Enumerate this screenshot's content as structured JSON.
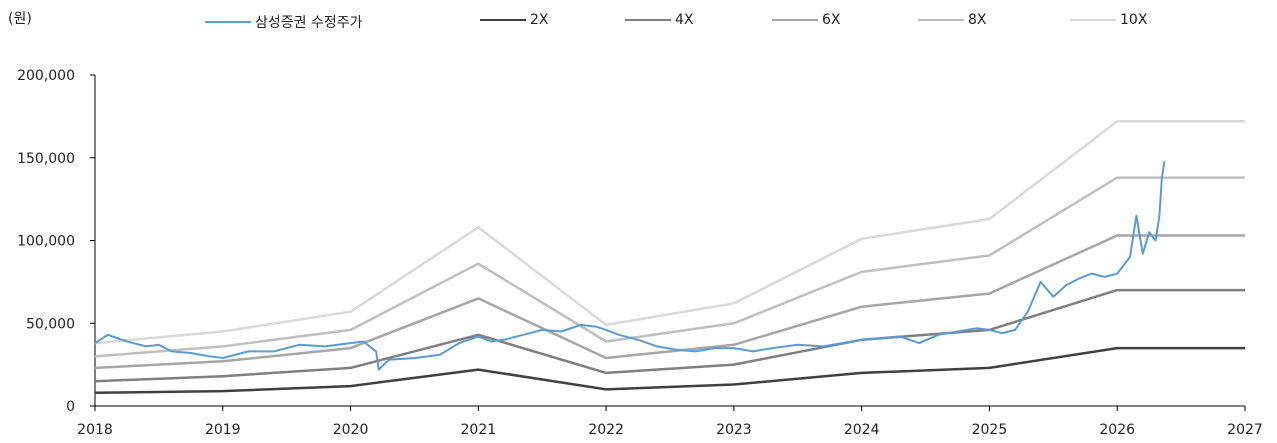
{
  "chart_data": {
    "type": "line",
    "unit_label": "(원)",
    "ylim": [
      0,
      200000
    ],
    "yticks": [
      "0",
      "50,000",
      "100,000",
      "150,000",
      "200,000"
    ],
    "ytick_values": [
      0,
      50000,
      100000,
      150000,
      200000
    ],
    "xlim": [
      2018,
      2027
    ],
    "xticks": [
      "2018",
      "2019",
      "2020",
      "2021",
      "2022",
      "2023",
      "2024",
      "2025",
      "2026",
      "2027"
    ],
    "grid": false,
    "legend_position": "top",
    "series": [
      {
        "name": "삼성증권 수정주가",
        "color": "#5B9BD5",
        "x": [
          2018.0,
          2018.1,
          2018.25,
          2018.4,
          2018.5,
          2018.6,
          2018.75,
          2018.9,
          2019.0,
          2019.2,
          2019.4,
          2019.6,
          2019.8,
          2020.0,
          2020.1,
          2020.2,
          2020.22,
          2020.3,
          2020.5,
          2020.7,
          2020.85,
          2021.0,
          2021.1,
          2021.2,
          2021.35,
          2021.5,
          2021.65,
          2021.8,
          2021.92,
          2022.0,
          2022.1,
          2022.25,
          2022.4,
          2022.55,
          2022.7,
          2022.85,
          2023.0,
          2023.15,
          2023.3,
          2023.5,
          2023.7,
          2023.85,
          2024.0,
          2024.15,
          2024.3,
          2024.45,
          2024.6,
          2024.75,
          2024.9,
          2025.0,
          2025.1,
          2025.2,
          2025.3,
          2025.4,
          2025.5,
          2025.6,
          2025.7,
          2025.8,
          2025.9,
          2026.0,
          2026.1,
          2026.15,
          2026.2,
          2026.25,
          2026.3,
          2026.33,
          2026.35,
          2026.37
        ],
        "y": [
          38000,
          43000,
          39000,
          36000,
          37000,
          33000,
          32000,
          30000,
          29000,
          33000,
          33000,
          37000,
          36000,
          38000,
          39000,
          33000,
          22000,
          28000,
          29000,
          31000,
          38000,
          42000,
          39000,
          40000,
          43000,
          46000,
          45000,
          49000,
          48000,
          46000,
          43000,
          40000,
          36000,
          34000,
          33000,
          35000,
          35000,
          33000,
          35000,
          37000,
          36000,
          38000,
          40000,
          41000,
          42000,
          38000,
          43000,
          45000,
          47000,
          46000,
          44000,
          46000,
          57000,
          75000,
          66000,
          73000,
          77000,
          80000,
          78000,
          80000,
          90000,
          115000,
          92000,
          105000,
          100000,
          115000,
          138000,
          148000
        ]
      },
      {
        "name": "2X",
        "color": "#404040",
        "x": [
          2018.0,
          2019.0,
          2020.0,
          2021.0,
          2022.0,
          2023.0,
          2024.0,
          2025.0,
          2026.0,
          2027.0
        ],
        "y": [
          8000,
          9000,
          12000,
          22000,
          10000,
          13000,
          20000,
          23000,
          35000,
          35000
        ]
      },
      {
        "name": "4X",
        "color": "#7F7F7F",
        "x": [
          2018.0,
          2019.0,
          2020.0,
          2021.0,
          2022.0,
          2023.0,
          2024.0,
          2025.0,
          2026.0,
          2027.0
        ],
        "y": [
          15000,
          18000,
          23000,
          43000,
          20000,
          25000,
          40000,
          46000,
          70000,
          70000
        ]
      },
      {
        "name": "6X",
        "color": "#A6A6A6",
        "x": [
          2018.0,
          2019.0,
          2020.0,
          2021.0,
          2022.0,
          2023.0,
          2024.0,
          2025.0,
          2026.0,
          2027.0
        ],
        "y": [
          23000,
          27000,
          35000,
          65000,
          29000,
          37000,
          60000,
          68000,
          103000,
          103000
        ]
      },
      {
        "name": "8X",
        "color": "#BFBFBF",
        "x": [
          2018.0,
          2019.0,
          2020.0,
          2021.0,
          2022.0,
          2023.0,
          2024.0,
          2025.0,
          2026.0,
          2027.0
        ],
        "y": [
          30000,
          36000,
          46000,
          86000,
          39000,
          50000,
          81000,
          91000,
          138000,
          138000
        ]
      },
      {
        "name": "10X",
        "color": "#D9D9D9",
        "x": [
          2018.0,
          2019.0,
          2020.0,
          2021.0,
          2022.0,
          2023.0,
          2024.0,
          2025.0,
          2026.0,
          2027.0
        ],
        "y": [
          38000,
          45000,
          57000,
          108000,
          49000,
          62000,
          101000,
          113000,
          172000,
          172000
        ]
      }
    ]
  }
}
